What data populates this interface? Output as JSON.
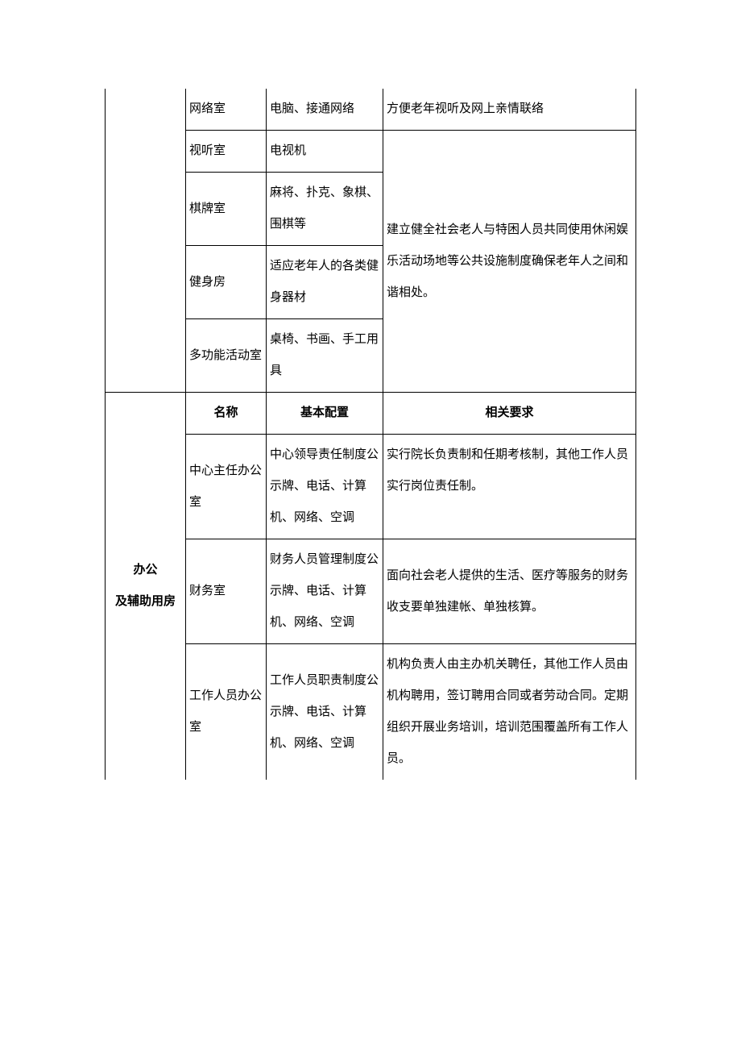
{
  "section1": {
    "rows": [
      {
        "name": "网络室",
        "config": "电脑、接通网络",
        "req": "方便老年视听及网上亲情联络"
      },
      {
        "name": "视听室",
        "config": "电视机",
        "req": "建立健全社会老人与特困人员共同使用休闲娱乐活动场地等公共设施制度确保老年人之间和谐相处。"
      },
      {
        "name": "棋牌室",
        "config": "麻将、扑克、象棋、围棋等"
      },
      {
        "name": "健身房",
        "config": "适应老年人的各类健身器材"
      },
      {
        "name": "多功能活动室",
        "config": "桌椅、书画、手工用具"
      }
    ]
  },
  "section2": {
    "category_line1": "办公",
    "category_line2": "及辅助用房",
    "headers": {
      "name": "名称",
      "config": "基本配置",
      "req": "相关要求"
    },
    "rows": [
      {
        "name": "中心主任办公室",
        "config": "中心领导责任制度公示牌、电话、计算机、网络、空调",
        "req": "实行院长负责制和任期考核制，其他工作人员实行岗位责任制。"
      },
      {
        "name": "财务室",
        "config": "财务人员管理制度公示牌、电话、计算机、网络、空调",
        "req": "面向社会老人提供的生活、医疗等服务的财务收支要单独建帐、单独核算。"
      },
      {
        "name": "工作人员办公室",
        "config": "工作人员职责制度公示牌、电话、计算机、网络、空调",
        "req": "机构负责人由主办机关聘任，其他工作人员由机构聘用，签订聘用合同或者劳动合同。定期组织开展业务培训，培训范围覆盖所有工作人员。"
      }
    ]
  }
}
